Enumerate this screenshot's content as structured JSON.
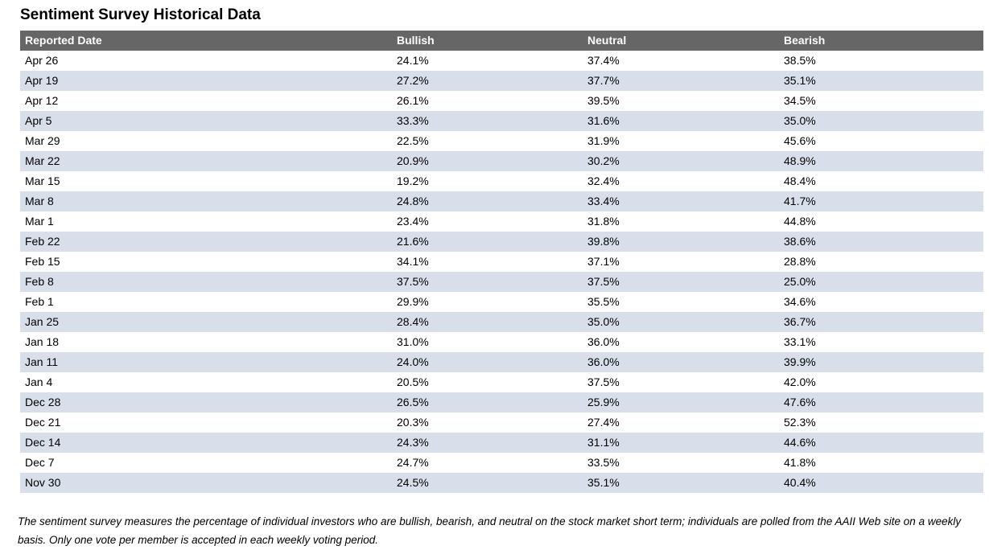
{
  "page": {
    "title": "Sentiment Survey Historical Data",
    "footnote": "The sentiment survey measures the percentage of individual investors who are bullish, bearish, and neutral on the stock market short term; individuals are polled from the AAII Web site on a weekly basis. Only one vote per member is accepted in each weekly voting period."
  },
  "colors": {
    "header_bg": "#666666",
    "header_text": "#ffffff",
    "row_stripe": "#d8deea",
    "body_text": "#000000",
    "page_bg": "#ffffff"
  },
  "table": {
    "headers": [
      "Reported Date",
      "Bullish",
      "Neutral",
      "Bearish"
    ],
    "rows": [
      [
        "Apr 26",
        "24.1%",
        "37.4%",
        "38.5%"
      ],
      [
        "Apr 19",
        "27.2%",
        "37.7%",
        "35.1%"
      ],
      [
        "Apr 12",
        "26.1%",
        "39.5%",
        "34.5%"
      ],
      [
        "Apr 5",
        "33.3%",
        "31.6%",
        "35.0%"
      ],
      [
        "Mar 29",
        "22.5%",
        "31.9%",
        "45.6%"
      ],
      [
        "Mar 22",
        "20.9%",
        "30.2%",
        "48.9%"
      ],
      [
        "Mar 15",
        "19.2%",
        "32.4%",
        "48.4%"
      ],
      [
        "Mar 8",
        "24.8%",
        "33.4%",
        "41.7%"
      ],
      [
        "Mar 1",
        "23.4%",
        "31.8%",
        "44.8%"
      ],
      [
        "Feb 22",
        "21.6%",
        "39.8%",
        "38.6%"
      ],
      [
        "Feb 15",
        "34.1%",
        "37.1%",
        "28.8%"
      ],
      [
        "Feb 8",
        "37.5%",
        "37.5%",
        "25.0%"
      ],
      [
        "Feb 1",
        "29.9%",
        "35.5%",
        "34.6%"
      ],
      [
        "Jan 25",
        "28.4%",
        "35.0%",
        "36.7%"
      ],
      [
        "Jan 18",
        "31.0%",
        "36.0%",
        "33.1%"
      ],
      [
        "Jan 11",
        "24.0%",
        "36.0%",
        "39.9%"
      ],
      [
        "Jan 4",
        "20.5%",
        "37.5%",
        "42.0%"
      ],
      [
        "Dec 28",
        "26.5%",
        "25.9%",
        "47.6%"
      ],
      [
        "Dec 21",
        "20.3%",
        "27.4%",
        "52.3%"
      ],
      [
        "Dec 14",
        "24.3%",
        "31.1%",
        "44.6%"
      ],
      [
        "Dec 7",
        "24.7%",
        "33.5%",
        "41.8%"
      ],
      [
        "Nov 30",
        "24.5%",
        "35.1%",
        "40.4%"
      ]
    ]
  },
  "chart_data": {
    "type": "table",
    "title": "Sentiment Survey Historical Data",
    "columns": [
      "Reported Date",
      "Bullish",
      "Neutral",
      "Bearish"
    ],
    "categories": [
      "Apr 26",
      "Apr 19",
      "Apr 12",
      "Apr 5",
      "Mar 29",
      "Mar 22",
      "Mar 15",
      "Mar 8",
      "Mar 1",
      "Feb 22",
      "Feb 15",
      "Feb 8",
      "Feb 1",
      "Jan 25",
      "Jan 18",
      "Jan 11",
      "Jan 4",
      "Dec 28",
      "Dec 21",
      "Dec 14",
      "Dec 7",
      "Nov 30"
    ],
    "series": [
      {
        "name": "Bullish",
        "values": [
          24.1,
          27.2,
          26.1,
          33.3,
          22.5,
          20.9,
          19.2,
          24.8,
          23.4,
          21.6,
          34.1,
          37.5,
          29.9,
          28.4,
          31.0,
          24.0,
          20.5,
          26.5,
          20.3,
          24.3,
          24.7,
          24.5
        ]
      },
      {
        "name": "Neutral",
        "values": [
          37.4,
          37.7,
          39.5,
          31.6,
          31.9,
          30.2,
          32.4,
          33.4,
          31.8,
          39.8,
          37.1,
          37.5,
          35.5,
          35.0,
          36.0,
          36.0,
          37.5,
          25.9,
          27.4,
          31.1,
          33.5,
          35.1
        ]
      },
      {
        "name": "Bearish",
        "values": [
          38.5,
          35.1,
          34.5,
          35.0,
          45.6,
          48.9,
          48.4,
          41.7,
          44.8,
          38.6,
          28.8,
          25.0,
          34.6,
          36.7,
          33.1,
          39.9,
          42.0,
          47.6,
          52.3,
          44.6,
          41.8,
          40.4
        ]
      }
    ],
    "units": "%",
    "footnote": "The sentiment survey measures the percentage of individual investors who are bullish, bearish, and neutral on the stock market short term; individuals are polled from the AAII Web site on a weekly basis. Only one vote per member is accepted in each weekly voting period."
  }
}
